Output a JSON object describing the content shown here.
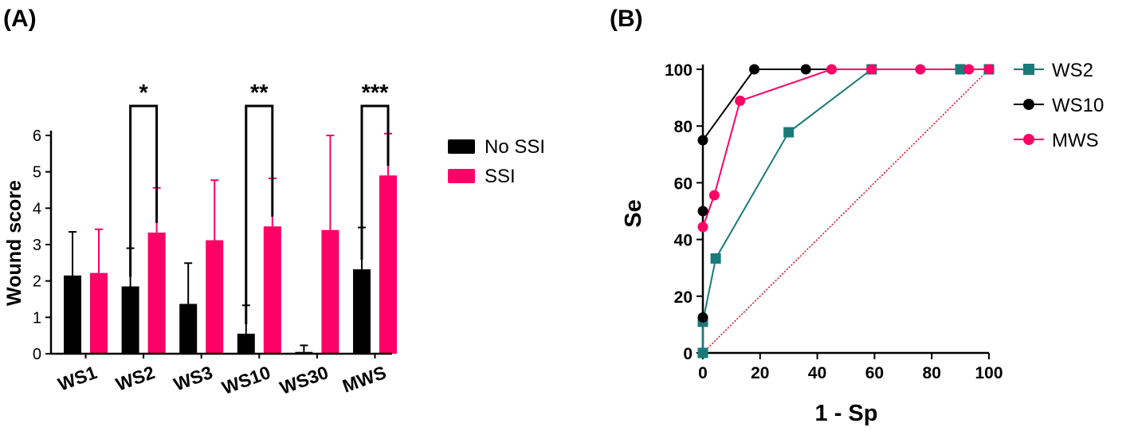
{
  "chart_data": [
    {
      "panel": "(A)",
      "type": "bar",
      "title": "",
      "xlabel": "",
      "ylabel": "Wound score",
      "ylim": [
        0,
        6
      ],
      "yticks": [
        0,
        1,
        2,
        3,
        4,
        5,
        6
      ],
      "categories": [
        "WS1",
        "WS2",
        "WS3",
        "WS10",
        "WS30",
        "MWS"
      ],
      "series": [
        {
          "name": "No SSI",
          "color": "#000000",
          "values": [
            2.15,
            1.85,
            1.37,
            0.55,
            0.05,
            2.32
          ],
          "error": [
            1.2,
            1.05,
            1.12,
            0.78,
            0.18,
            1.15
          ]
        },
        {
          "name": "SSI",
          "color": "#FF0066",
          "values": [
            2.22,
            3.33,
            3.12,
            3.5,
            3.4,
            4.9
          ],
          "error": [
            1.2,
            1.23,
            1.65,
            1.32,
            2.6,
            1.15
          ]
        }
      ],
      "significance": [
        {
          "category": "WS2",
          "label": "*"
        },
        {
          "category": "WS10",
          "label": "**"
        },
        {
          "category": "MWS",
          "label": "***"
        }
      ],
      "legend": "right"
    },
    {
      "panel": "(B)",
      "type": "line",
      "title": "",
      "xlabel": "1 - Sp",
      "ylabel": "Se",
      "xlim": [
        0,
        100
      ],
      "ylim": [
        0,
        100
      ],
      "xticks": [
        0,
        20,
        40,
        60,
        80,
        100
      ],
      "yticks": [
        0,
        20,
        40,
        60,
        80,
        100
      ],
      "series": [
        {
          "name": "WS2",
          "color": "#1A7A7A",
          "marker": "square",
          "x": [
            0,
            0,
            4.5,
            30,
            59,
            90,
            100
          ],
          "y": [
            0,
            11,
            33.3,
            77.8,
            100,
            100,
            100
          ]
        },
        {
          "name": "WS10",
          "color": "#000000",
          "marker": "circle",
          "x": [
            0,
            0,
            0,
            18,
            36,
            100
          ],
          "y": [
            12.5,
            50,
            75,
            100,
            100,
            100
          ]
        },
        {
          "name": "MWS",
          "color": "#FF0066",
          "marker": "circle",
          "x": [
            0,
            4,
            13,
            45,
            59,
            76,
            93,
            100
          ],
          "y": [
            44.4,
            55.6,
            88.9,
            100,
            100,
            100,
            100,
            100
          ]
        }
      ],
      "reference_line": {
        "color": "#E8001C",
        "style": "dotted",
        "from": [
          0,
          0
        ],
        "to": [
          100,
          100
        ]
      },
      "legend": "right"
    }
  ]
}
